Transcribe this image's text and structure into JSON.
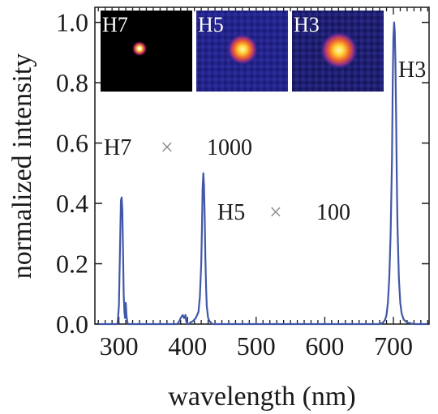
{
  "chart_data": {
    "type": "line",
    "xlabel": "wavelength (nm)",
    "ylabel": "normalized intensity",
    "xlim": [
      265,
      752
    ],
    "ylim": [
      0,
      1.05
    ],
    "xticks": [
      300,
      400,
      500,
      600,
      700
    ],
    "yticks": [
      0.0,
      0.2,
      0.4,
      0.6,
      0.8,
      1.0
    ],
    "ytick_labels": [
      "0.0",
      "0.2",
      "0.4",
      "0.6",
      "0.8",
      "1.0"
    ],
    "xtick_labels": [
      "300",
      "400",
      "500",
      "600",
      "700"
    ],
    "grid": false,
    "line_color": "#4057a8",
    "series": [
      {
        "x": [
          270,
          298,
          300,
          302,
          303,
          304,
          305,
          306,
          307,
          308,
          309,
          310,
          311,
          312,
          313,
          314,
          316,
          318,
          350,
          385,
          388,
          390,
          393,
          395,
          397,
          398,
          400,
          402,
          404,
          408,
          412,
          416,
          418,
          420,
          421,
          422,
          423,
          424,
          425,
          426,
          427,
          428,
          430,
          432,
          436,
          445,
          500,
          600,
          680,
          685,
          688,
          690,
          692,
          694,
          696,
          698,
          699,
          700,
          701,
          702,
          703,
          704,
          705,
          706,
          708,
          710,
          712,
          715,
          720,
          730,
          750
        ],
        "y": [
          0.0,
          0.0,
          0.06,
          0.3,
          0.41,
          0.42,
          0.38,
          0.24,
          0.1,
          0.04,
          0.02,
          0.07,
          0.03,
          0.01,
          0.0,
          0.0,
          0.0,
          0.0,
          0.0,
          0.0,
          0.01,
          0.02,
          0.03,
          0.02,
          0.03,
          0.01,
          0.0,
          0.0,
          0.005,
          0.01,
          0.02,
          0.04,
          0.09,
          0.2,
          0.32,
          0.45,
          0.5,
          0.46,
          0.35,
          0.22,
          0.12,
          0.06,
          0.02,
          0.01,
          0.0,
          0.0,
          0.0,
          0.0,
          0.0,
          0.005,
          0.015,
          0.03,
          0.07,
          0.15,
          0.3,
          0.55,
          0.8,
          0.95,
          1.0,
          0.97,
          0.87,
          0.68,
          0.48,
          0.32,
          0.15,
          0.07,
          0.035,
          0.015,
          0.005,
          0.0,
          0.0
        ]
      }
    ],
    "annotations": [
      {
        "text": "H7",
        "mult": "×",
        "factor": "1000"
      },
      {
        "text": "H5",
        "mult": "×",
        "factor": "100"
      },
      {
        "text": "H3"
      }
    ],
    "insets": [
      {
        "label": "H7",
        "background": "#000000",
        "spot_color": "#ffe15a"
      },
      {
        "label": "H5",
        "background": "#23238a",
        "spot_color": "#ffe64a"
      },
      {
        "label": "H3",
        "background": "#1e1f70",
        "spot_color": "#ffe84a"
      }
    ]
  }
}
